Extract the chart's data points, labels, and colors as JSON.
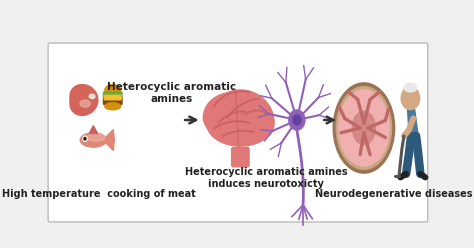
{
  "bg_color": "#f0f0f0",
  "panel_bg": "#ffffff",
  "border_color": "#bbbbbb",
  "arrow_color": "#333333",
  "arrow_lw": 1.8,
  "box1_label": "High temperature  cooking of meat",
  "box2_label": "Heterocyclic aromatic amines\ninduces neurotoxicty",
  "box3_label": "Neurodegenerative diseases",
  "box1_sublabel": "Heterocyclic aromatic\namines",
  "brain_color": "#e07878",
  "brain_fold_color": "#c85c5c",
  "neuron_color": "#9060b8",
  "brain_slice_outer": "#9b7355",
  "brain_slice_mid": "#c49878",
  "brain_slice_inner": "#f0b0b0",
  "brain_slice_vein": "#c06868",
  "person_skin": "#d4a882",
  "person_body": "#4a7a9b",
  "person_legs": "#2d5a7a",
  "label_fontsize": 7.0,
  "sublabel_fontsize": 7.5,
  "label_fontweight": "bold",
  "fig_width": 4.74,
  "fig_height": 2.48,
  "dpi": 100
}
